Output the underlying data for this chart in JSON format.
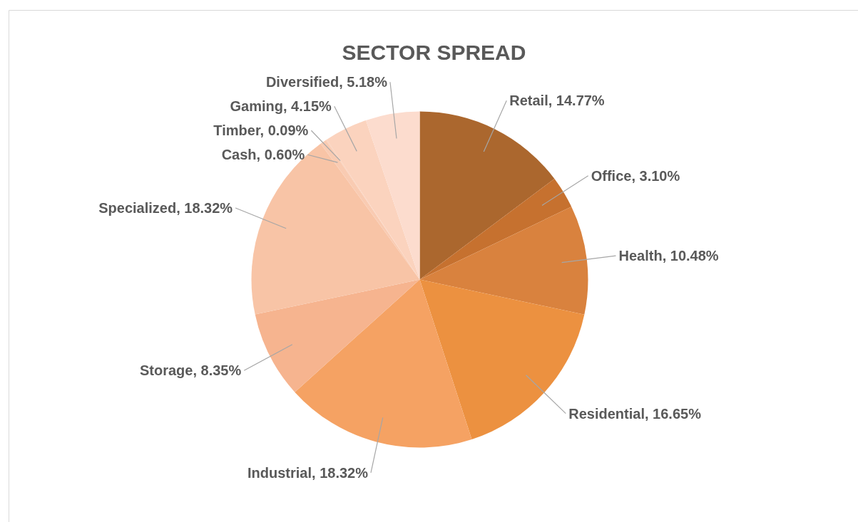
{
  "chart_data": {
    "type": "pie",
    "title": "SECTOR SPREAD",
    "categories": [
      "Retail",
      "Office",
      "Health",
      "Residential",
      "Industrial",
      "Storage",
      "Specialized",
      "Cash",
      "Timber",
      "Gaming",
      "Diversified"
    ],
    "values": [
      14.77,
      3.1,
      10.48,
      16.65,
      18.32,
      8.35,
      18.32,
      0.6,
      0.09,
      4.15,
      5.18
    ],
    "value_labels": [
      "14.77%",
      "3.10%",
      "10.48%",
      "16.65%",
      "18.32%",
      "8.35%",
      "18.32%",
      "0.60%",
      "0.09%",
      "4.15%",
      "5.18%"
    ],
    "colors": [
      "#ab672e",
      "#c6712f",
      "#d9823e",
      "#ec9140",
      "#f5a263",
      "#f6b48f",
      "#f8c4a6",
      "#f9cbb2",
      "#facfb9",
      "#fbd3be",
      "#fcdcce"
    ]
  }
}
